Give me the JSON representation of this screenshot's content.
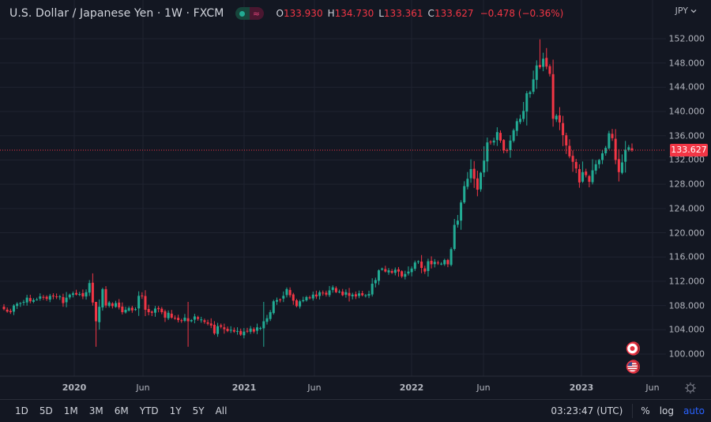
{
  "legend": {
    "title": "U.S. Dollar / Japanese Yen · 1W · FXCM",
    "open_label": "O",
    "open": "133.930",
    "high_label": "H",
    "high": "134.730",
    "low_label": "L",
    "low": "133.361",
    "close_label": "C",
    "close": "133.627",
    "change": "−0.478 (−0.36%)",
    "market_status_icon": "live-dot-icon",
    "data_type_icon": "approx-equal-icon"
  },
  "currency_selector": {
    "label": "JPY",
    "icon": "chevron-down-icon"
  },
  "price_axis": {
    "labels": [
      "152.000",
      "148.000",
      "144.000",
      "140.000",
      "136.000",
      "132.000",
      "128.000",
      "124.000",
      "120.000",
      "116.000",
      "112.000",
      "108.000",
      "104.000",
      "100.000"
    ],
    "current_price": "133.627"
  },
  "time_axis": {
    "labels": [
      {
        "text": "2020",
        "year": true
      },
      {
        "text": "Jun",
        "year": false
      },
      {
        "text": "2021",
        "year": true
      },
      {
        "text": "Jun",
        "year": false
      },
      {
        "text": "2022",
        "year": true
      },
      {
        "text": "Jun",
        "year": false
      },
      {
        "text": "2023",
        "year": true
      },
      {
        "text": "Jun",
        "year": false
      }
    ],
    "settings_icon": "gear-icon"
  },
  "events": [
    {
      "icon": "japan-flag-icon",
      "label": "JP event"
    },
    {
      "icon": "us-flag-icon",
      "label": "US event"
    }
  ],
  "bottom_bar": {
    "ranges": [
      "1D",
      "5D",
      "1M",
      "3M",
      "6M",
      "YTD",
      "1Y",
      "5Y",
      "All"
    ],
    "clock": "03:23:47 (UTC)",
    "percent": "%",
    "log": "log",
    "auto": "auto"
  },
  "colors": {
    "background": "#131722",
    "grid": "#1f2330",
    "up": "#22ab94",
    "down": "#f23645",
    "price_line": "#f23645",
    "accent": "#2962ff"
  },
  "chart_data": {
    "type": "candlestick",
    "title": "U.S. Dollar / Japanese Yen · 1W · FXCM",
    "symbol": "USDJPY",
    "interval": "1W",
    "xlabel": "",
    "ylabel": "JPY",
    "ylim": [
      97,
      154
    ],
    "grid": true,
    "x_range": [
      "2019-09",
      "2023-05"
    ],
    "x_ticks": [
      "2020",
      "Jun",
      "2021",
      "Jun",
      "2022",
      "Jun",
      "2023",
      "Jun"
    ],
    "y_ticks": [
      100,
      104,
      108,
      112,
      116,
      120,
      124,
      128,
      132,
      136,
      140,
      144,
      148,
      152
    ],
    "last_bar": {
      "open": 133.93,
      "high": 134.73,
      "low": 133.361,
      "close": 133.627,
      "change": -0.478,
      "change_pct": -0.36
    },
    "weekly_closes": [
      107.4,
      107.0,
      106.9,
      108.0,
      108.3,
      108.4,
      108.6,
      109.3,
      108.7,
      108.9,
      109.0,
      109.5,
      109.4,
      109.1,
      109.6,
      109.5,
      109.4,
      109.5,
      108.4,
      109.3,
      109.8,
      110.0,
      109.8,
      109.9,
      109.5,
      110.2,
      111.7,
      108.5,
      105.4,
      107.8,
      110.7,
      108.0,
      108.5,
      107.9,
      108.4,
      107.7,
      106.9,
      107.3,
      107.6,
      107.2,
      107.4,
      109.6,
      109.6,
      107.3,
      106.9,
      106.8,
      107.5,
      107.4,
      106.9,
      106.0,
      106.8,
      106.0,
      105.9,
      105.6,
      105.5,
      106.0,
      105.4,
      105.6,
      106.2,
      105.8,
      105.7,
      105.3,
      105.0,
      104.7,
      103.4,
      104.6,
      104.5,
      104.1,
      103.8,
      104.0,
      103.7,
      103.8,
      103.2,
      103.7,
      103.8,
      104.2,
      103.7,
      104.4,
      104.3,
      105.4,
      105.9,
      106.9,
      108.7,
      108.9,
      109.0,
      109.6,
      110.7,
      109.7,
      108.8,
      107.9,
      108.7,
      108.9,
      109.4,
      109.2,
      109.8,
      109.5,
      110.2,
      110.0,
      109.8,
      110.5,
      111.0,
      110.2,
      110.3,
      109.7,
      110.2,
      109.6,
      109.8,
      109.5,
      110.0,
      109.7,
      109.7,
      109.9,
      111.6,
      112.2,
      113.8,
      114.1,
      113.6,
      113.8,
      113.4,
      113.9,
      113.6,
      112.8,
      113.2,
      113.6,
      114.1,
      115.1,
      115.3,
      114.2,
      113.6,
      115.3,
      114.8,
      115.2,
      115.0,
      114.9,
      115.5,
      114.8,
      117.3,
      121.3,
      122.0,
      125.0,
      127.7,
      128.9,
      130.5,
      128.9,
      127.1,
      129.9,
      131.9,
      134.9,
      135.0,
      135.2,
      136.6,
      135.2,
      133.6,
      133.5,
      135.2,
      136.9,
      138.4,
      138.8,
      140.1,
      143.0,
      143.2,
      145.3,
      147.6,
      147.3,
      148.7,
      147.4,
      146.2,
      138.8,
      139.3,
      138.2,
      136.1,
      134.4,
      132.6,
      131.7,
      130.6,
      128.3,
      130.0,
      129.5,
      128.4,
      130.3,
      131.3,
      132.0,
      133.1,
      134.0,
      136.4,
      135.6,
      132.0,
      130.0,
      131.6,
      133.7,
      134.1,
      133.6
    ]
  }
}
